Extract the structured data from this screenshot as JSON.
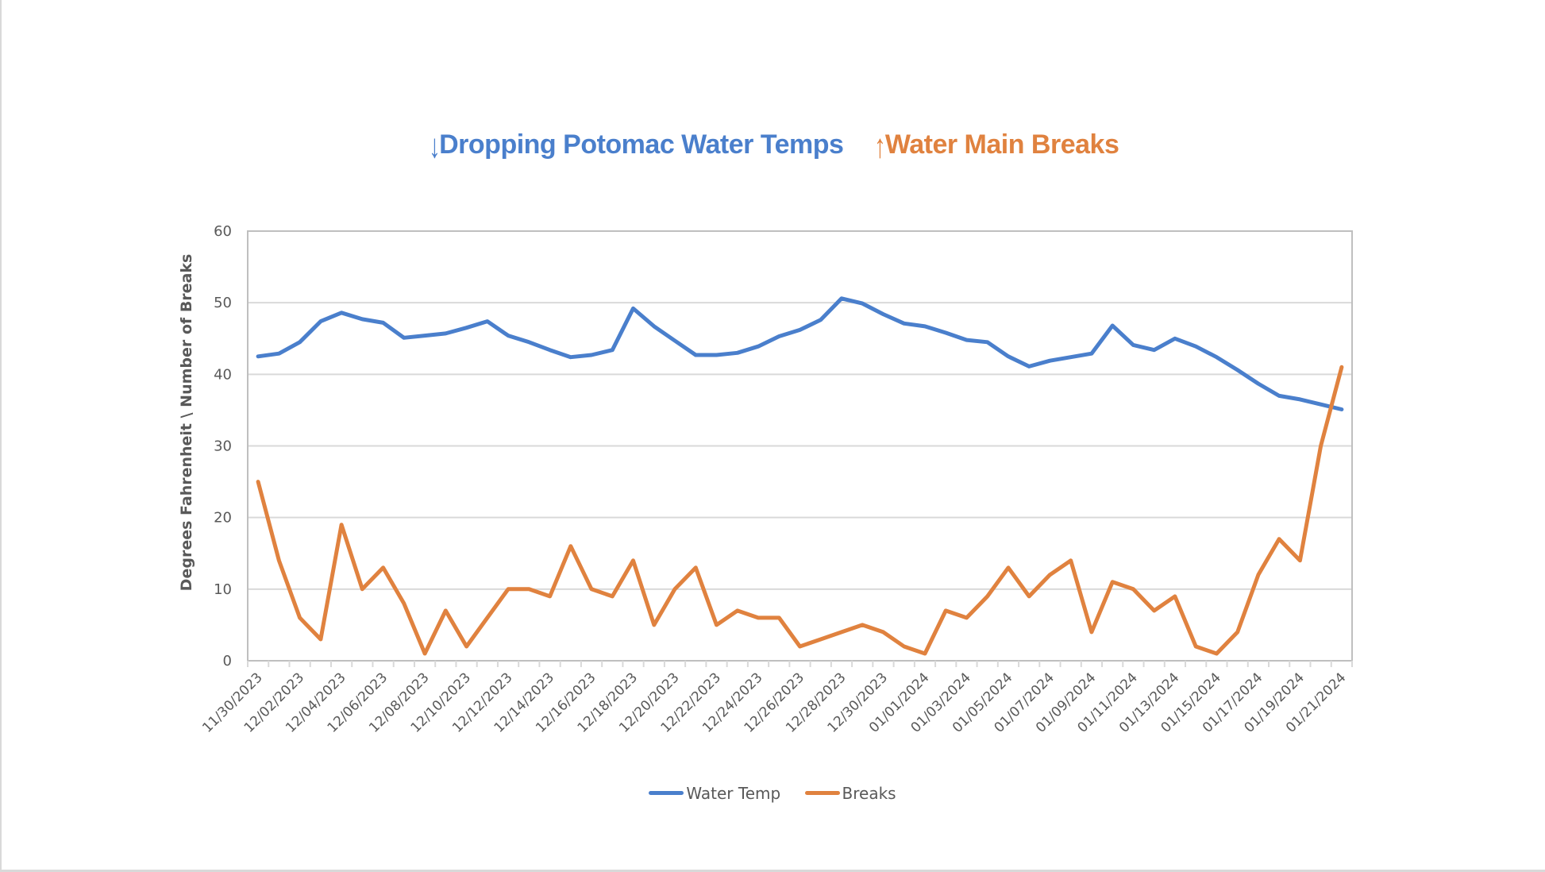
{
  "colors": {
    "temp": "#4a7fcc",
    "breaks": "#e0823f",
    "axis_text": "#595959",
    "grid": "#d9d9d9",
    "axis": "#bfbfbf"
  },
  "title": {
    "part1_icon": "down-arrow-icon",
    "part1_arrow": "↓",
    "part1_text": "Dropping Potomac Water Temps",
    "part2_icon": "up-arrow-icon",
    "part2_arrow": "↑",
    "part2_text": "Water Main Breaks"
  },
  "legend": [
    {
      "name": "Water Temp"
    },
    {
      "name": "Breaks"
    }
  ],
  "chart_data": {
    "type": "line",
    "title": "↓Dropping Potomac Water Temps  ↑Water Main Breaks",
    "xlabel": "",
    "ylabel": "Degrees Fahrenheit \\ Number of Breaks",
    "ylim": [
      0,
      60
    ],
    "yticks": [
      0,
      10,
      20,
      30,
      40,
      50,
      60
    ],
    "grid": true,
    "legend_position": "bottom",
    "x": [
      "11/30/2023",
      "12/01/2023",
      "12/02/2023",
      "12/03/2023",
      "12/04/2023",
      "12/05/2023",
      "12/06/2023",
      "12/07/2023",
      "12/08/2023",
      "12/09/2023",
      "12/10/2023",
      "12/11/2023",
      "12/12/2023",
      "12/13/2023",
      "12/14/2023",
      "12/15/2023",
      "12/16/2023",
      "12/17/2023",
      "12/18/2023",
      "12/19/2023",
      "12/20/2023",
      "12/21/2023",
      "12/22/2023",
      "12/23/2023",
      "12/24/2023",
      "12/25/2023",
      "12/26/2023",
      "12/27/2023",
      "12/28/2023",
      "12/29/2023",
      "12/30/2023",
      "12/31/2023",
      "01/01/2024",
      "01/02/2024",
      "01/03/2024",
      "01/04/2024",
      "01/05/2024",
      "01/06/2024",
      "01/07/2024",
      "01/08/2024",
      "01/09/2024",
      "01/10/2024",
      "01/11/2024",
      "01/12/2024",
      "01/13/2024",
      "01/14/2024",
      "01/15/2024",
      "01/16/2024",
      "01/17/2024",
      "01/18/2024",
      "01/19/2024",
      "01/20/2024",
      "01/21/2024"
    ],
    "x_tick_labels": [
      "11/30/2023",
      "12/02/2023",
      "12/04/2023",
      "12/06/2023",
      "12/08/2023",
      "12/10/2023",
      "12/12/2023",
      "12/14/2023",
      "12/16/2023",
      "12/18/2023",
      "12/20/2023",
      "12/22/2023",
      "12/24/2023",
      "12/26/2023",
      "12/28/2023",
      "12/30/2023",
      "01/01/2024",
      "01/03/2024",
      "01/05/2024",
      "01/07/2024",
      "01/09/2024",
      "01/11/2024",
      "01/13/2024",
      "01/15/2024",
      "01/17/2024",
      "01/19/2024",
      "01/21/2024"
    ],
    "series": [
      {
        "name": "Water Temp",
        "color": "#4a7fcc",
        "values": [
          42.5,
          42.9,
          44.5,
          47.4,
          48.6,
          47.7,
          47.2,
          45.1,
          45.4,
          45.7,
          46.5,
          47.4,
          45.4,
          44.5,
          43.4,
          42.4,
          42.7,
          43.4,
          49.2,
          46.7,
          44.7,
          42.7,
          42.7,
          43.0,
          43.9,
          45.3,
          46.2,
          47.6,
          50.6,
          49.9,
          48.4,
          47.1,
          46.7,
          45.8,
          44.8,
          44.5,
          42.5,
          41.1,
          41.9,
          42.4,
          42.9,
          46.8,
          44.1,
          43.4,
          45.0,
          43.9,
          42.4,
          40.6,
          38.7,
          37.0,
          36.5,
          35.8,
          35.1
        ]
      },
      {
        "name": "Breaks",
        "color": "#e0823f",
        "values": [
          25,
          14,
          6,
          3,
          19,
          10,
          13,
          8,
          1,
          7,
          2,
          6,
          10,
          10,
          9,
          16,
          10,
          9,
          14,
          5,
          10,
          13,
          5,
          7,
          6,
          6,
          2,
          3,
          4,
          5,
          4,
          2,
          1,
          7,
          6,
          9,
          13,
          9,
          12,
          14,
          4,
          11,
          10,
          7,
          9,
          2,
          1,
          4,
          12,
          17,
          14,
          30,
          41
        ]
      }
    ]
  }
}
